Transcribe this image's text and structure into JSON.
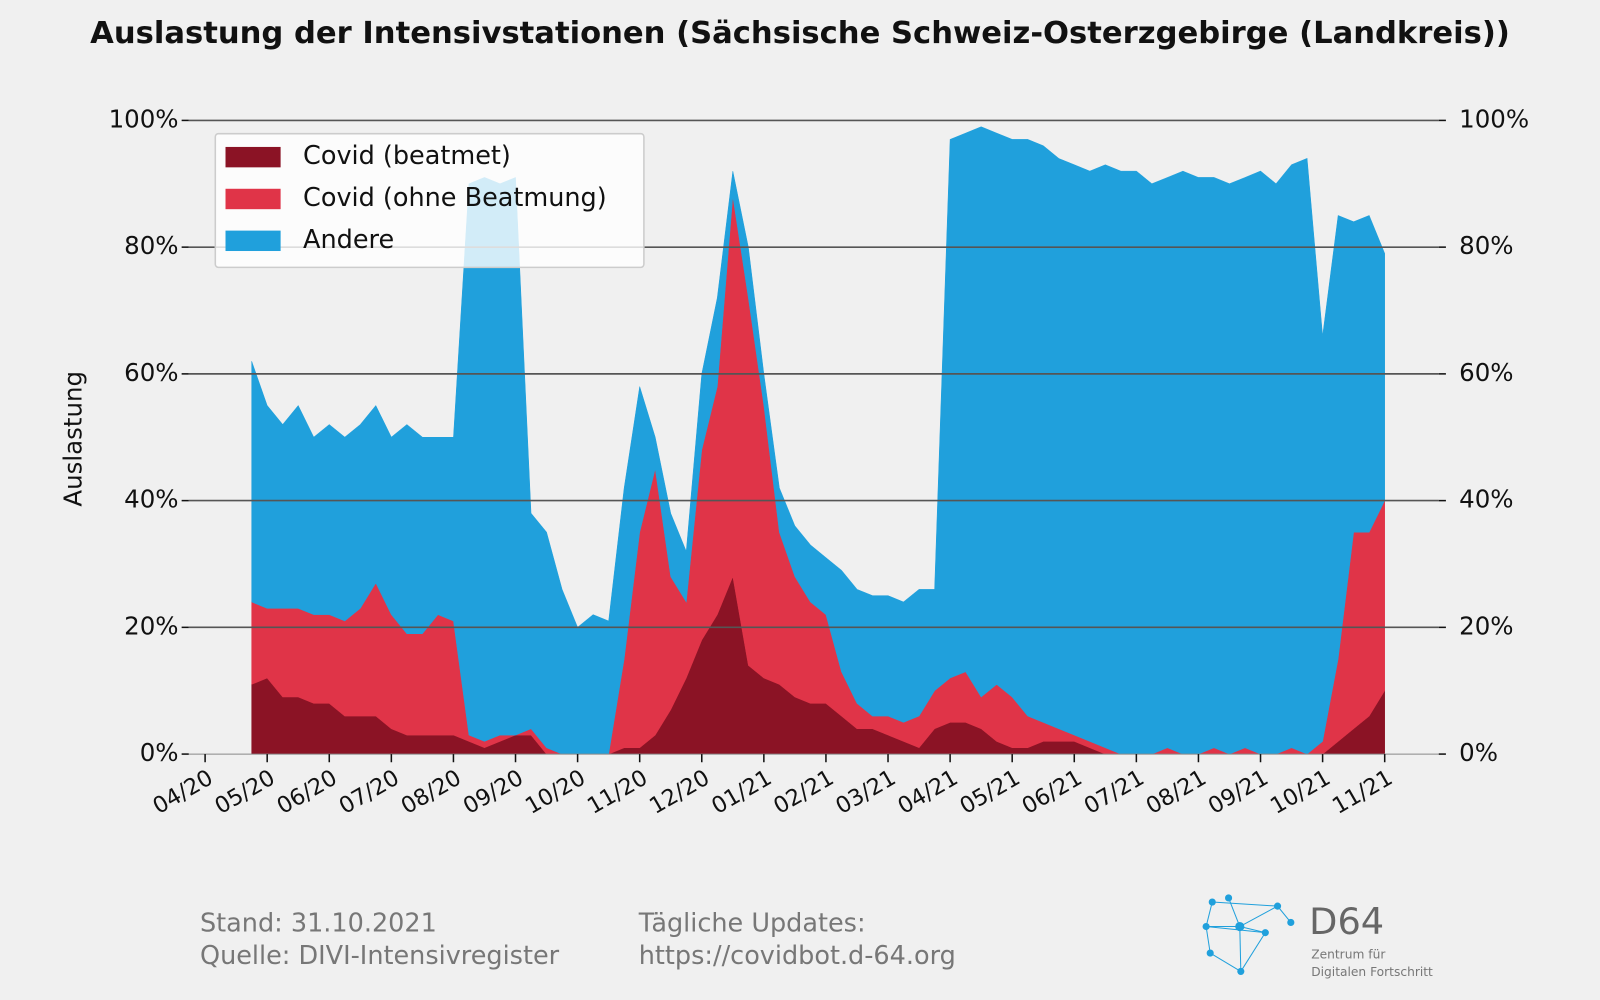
{
  "chart_data": {
    "type": "stacked-area",
    "title": "Auslastung der Intensivstationen (Sächsische Schweiz-Osterzgebirge (Landkreis))",
    "ylabel": "Auslastung",
    "categories": [
      "04/20",
      null,
      null,
      null,
      "05/20",
      null,
      null,
      null,
      "06/20",
      null,
      null,
      null,
      "07/20",
      null,
      null,
      null,
      "08/20",
      null,
      null,
      null,
      "09/20",
      null,
      null,
      null,
      "10/20",
      null,
      null,
      null,
      "11/20",
      null,
      null,
      null,
      "12/20",
      null,
      null,
      null,
      "01/21",
      null,
      null,
      null,
      "02/21",
      null,
      null,
      null,
      "03/21",
      null,
      null,
      null,
      "04/21",
      null,
      null,
      null,
      "05/21",
      null,
      null,
      null,
      "06/21",
      null,
      null,
      null,
      "07/21",
      null,
      null,
      null,
      "08/21",
      null,
      null,
      null,
      "09/21",
      null,
      null,
      null,
      "10/21",
      null,
      null,
      null,
      "11/21"
    ],
    "series": [
      {
        "name": "Covid (beatmet)",
        "color": "#8b1325",
        "values": [
          null,
          null,
          null,
          11,
          12,
          9,
          9,
          8,
          8,
          6,
          6,
          6,
          4,
          3,
          3,
          3,
          3,
          2,
          1,
          2,
          3,
          3,
          0,
          0,
          0,
          0,
          0,
          1,
          1,
          3,
          7,
          12,
          18,
          22,
          28,
          14,
          12,
          11,
          9,
          8,
          8,
          6,
          4,
          4,
          3,
          2,
          1,
          4,
          5,
          5,
          4,
          2,
          1,
          1,
          2,
          2,
          2,
          1,
          0,
          0,
          0,
          0,
          0,
          0,
          0,
          0,
          0,
          0,
          0,
          0,
          0,
          0,
          0,
          2,
          4,
          6,
          10
        ]
      },
      {
        "name": "Covid (ohne Beatmung)",
        "color": "#e03448",
        "values": [
          null,
          null,
          null,
          13,
          11,
          14,
          14,
          14,
          14,
          15,
          17,
          21,
          18,
          16,
          16,
          19,
          18,
          1,
          1,
          1,
          0,
          1,
          1,
          0,
          0,
          0,
          0,
          14,
          34,
          42,
          21,
          12,
          30,
          36,
          60,
          58,
          43,
          24,
          19,
          16,
          14,
          7,
          4,
          2,
          3,
          3,
          5,
          6,
          7,
          8,
          5,
          9,
          8,
          5,
          3,
          2,
          1,
          1,
          1,
          0,
          0,
          0,
          1,
          0,
          0,
          1,
          0,
          1,
          0,
          0,
          1,
          0,
          2,
          13,
          31,
          29,
          30
        ]
      },
      {
        "name": "Andere",
        "color": "#20a0dc",
        "values": [
          null,
          null,
          null,
          38,
          32,
          29,
          32,
          28,
          30,
          29,
          29,
          28,
          28,
          33,
          31,
          28,
          29,
          87,
          89,
          87,
          88,
          34,
          34,
          26,
          20,
          22,
          21,
          27,
          23,
          5,
          10,
          8,
          12,
          14,
          4,
          8,
          5,
          7,
          8,
          9,
          9,
          16,
          18,
          19,
          19,
          19,
          20,
          16,
          85,
          85,
          90,
          87,
          88,
          91,
          91,
          90,
          90,
          90,
          92,
          92,
          92,
          90,
          90,
          92,
          91,
          90,
          90,
          90,
          92,
          90,
          92,
          94,
          64,
          70,
          49,
          50,
          39
        ]
      }
    ],
    "ylim": [
      0,
      100
    ],
    "yticks": [
      {
        "value": 0,
        "label": "0%"
      },
      {
        "value": 20,
        "label": "20%"
      },
      {
        "value": 40,
        "label": "40%"
      },
      {
        "value": 60,
        "label": "60%"
      },
      {
        "value": 80,
        "label": "80%"
      },
      {
        "value": 100,
        "label": "100%"
      }
    ],
    "grid": true,
    "legend": "upper left"
  },
  "footer": {
    "stand": "Stand: 31.10.2021",
    "quelle": "Quelle: DIVI-Intensivregister",
    "updates": "Tägliche Updates:",
    "url": "https://covidbot.d-64.org",
    "logo": {
      "name": "D64",
      "line1": "Zentrum für",
      "line2": "Digitalen Fortschritt"
    }
  }
}
